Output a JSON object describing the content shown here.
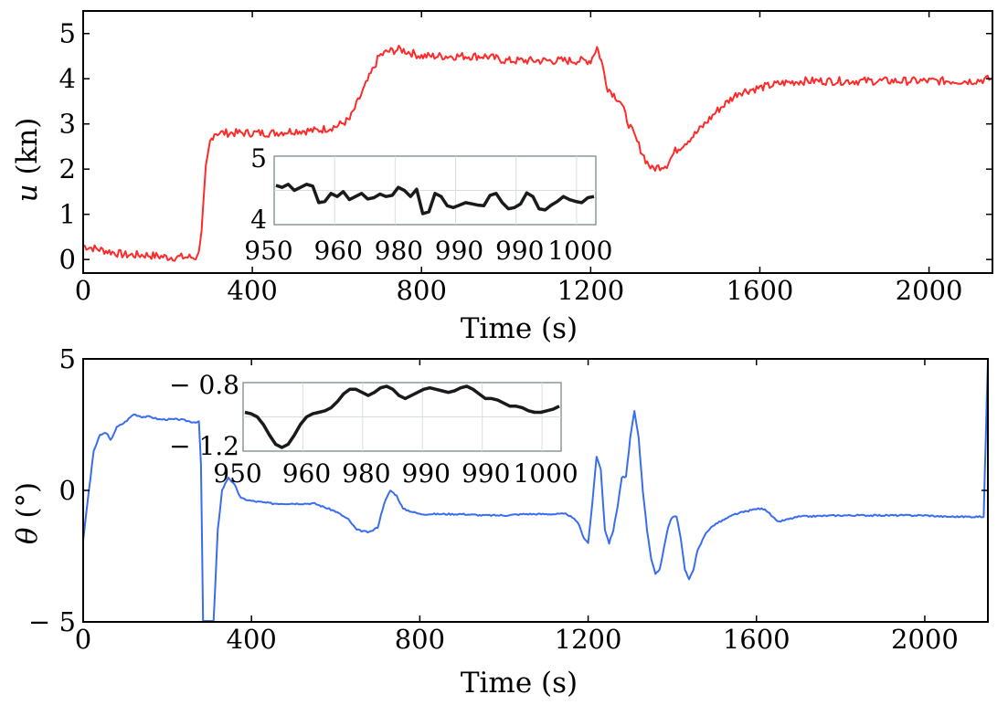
{
  "chart_data": [
    {
      "type": "line",
      "title": "",
      "xlabel": "Time (s)",
      "ylabel_symbol": "u",
      "ylabel_unit": " (kn)",
      "xlim": [
        0,
        2150
      ],
      "ylim": [
        -0.3,
        5.5
      ],
      "xticks": [
        0,
        400,
        800,
        1200,
        1600,
        2000
      ],
      "xtick_labels": [
        "0",
        "400",
        "800",
        "1200",
        "1600",
        "2000"
      ],
      "yticks": [
        0,
        1,
        2,
        3,
        4,
        5
      ],
      "ytick_labels": [
        "0",
        "1",
        "2",
        "3",
        "4",
        "5"
      ],
      "grid": false,
      "color": "#ff2a2a",
      "series": [
        {
          "x": [
            0,
            50,
            100,
            150,
            200,
            240,
            270,
            280,
            290,
            300,
            310,
            350,
            400,
            450,
            500,
            550,
            600,
            630,
            650,
            680,
            700,
            720,
            750,
            800,
            850,
            900,
            950,
            1000,
            1050,
            1100,
            1150,
            1200,
            1215,
            1225,
            1240,
            1255,
            1270,
            1290,
            1310,
            1330,
            1345,
            1360,
            1380,
            1400,
            1450,
            1500,
            1550,
            1600,
            1650,
            1700,
            1800,
            1900,
            2000,
            2100,
            2150
          ],
          "y": [
            0.3,
            0.2,
            0.1,
            0.1,
            0.05,
            0.05,
            0.05,
            0.6,
            2.0,
            2.6,
            2.8,
            2.8,
            2.8,
            2.8,
            2.85,
            2.85,
            2.95,
            3.1,
            3.5,
            4.1,
            4.5,
            4.6,
            4.65,
            4.5,
            4.5,
            4.5,
            4.5,
            4.4,
            4.4,
            4.4,
            4.4,
            4.4,
            4.7,
            4.4,
            3.8,
            3.65,
            3.5,
            3.0,
            2.6,
            2.2,
            2.0,
            2.05,
            2.1,
            2.4,
            2.8,
            3.3,
            3.7,
            3.8,
            3.9,
            3.95,
            3.95,
            3.95,
            3.95,
            3.95,
            4.0
          ]
        }
      ],
      "inset": {
        "type": "line",
        "xtick_labels": [
          "950",
          "960",
          "980",
          "990",
          "990",
          "1000"
        ],
        "ytick_labels": [
          "5",
          "4"
        ],
        "ylim": [
          4,
          5
        ],
        "color": "#1a1a1a",
        "values": [
          4.58,
          4.55,
          4.6,
          4.5,
          4.55,
          4.6,
          4.57,
          4.3,
          4.32,
          4.45,
          4.4,
          4.48,
          4.35,
          4.4,
          4.45,
          4.36,
          4.38,
          4.44,
          4.4,
          4.42,
          4.55,
          4.5,
          4.4,
          4.52,
          4.12,
          4.15,
          4.45,
          4.4,
          4.25,
          4.22,
          4.26,
          4.3,
          4.28,
          4.26,
          4.25,
          4.42,
          4.45,
          4.3,
          4.2,
          4.22,
          4.28,
          4.46,
          4.4,
          4.2,
          4.18,
          4.26,
          4.32,
          4.4,
          4.35,
          4.32,
          4.3,
          4.38,
          4.4
        ]
      }
    },
    {
      "type": "line",
      "title": "",
      "xlabel": "Time (s)",
      "ylabel_symbol": "θ",
      "ylabel_unit": " (°)",
      "xlim": [
        0,
        2150
      ],
      "ylim": [
        -5,
        5
      ],
      "xticks": [
        0,
        400,
        800,
        1200,
        1600,
        2000
      ],
      "xtick_labels": [
        "0",
        "400",
        "800",
        "1200",
        "1600",
        "2000"
      ],
      "yticks": [
        -5,
        0,
        5
      ],
      "ytick_labels": [
        "− 5",
        "0",
        "5"
      ],
      "grid": false,
      "color": "#3a6cf0",
      "series": [
        {
          "x": [
            0,
            10,
            25,
            40,
            55,
            65,
            80,
            100,
            120,
            140,
            160,
            180,
            200,
            230,
            260,
            275,
            280,
            285,
            290,
            295,
            300,
            305,
            310,
            320,
            330,
            345,
            360,
            375,
            400,
            450,
            500,
            550,
            600,
            630,
            650,
            680,
            700,
            715,
            730,
            745,
            760,
            780,
            800,
            850,
            900,
            950,
            1000,
            1050,
            1100,
            1150,
            1175,
            1190,
            1200,
            1210,
            1220,
            1230,
            1240,
            1250,
            1260,
            1270,
            1280,
            1290,
            1300,
            1310,
            1320,
            1330,
            1340,
            1350,
            1360,
            1370,
            1380,
            1390,
            1400,
            1410,
            1420,
            1430,
            1440,
            1450,
            1460,
            1480,
            1500,
            1550,
            1600,
            1620,
            1650,
            1700,
            1800,
            1900,
            1950,
            2000,
            2050,
            2100,
            2130,
            2140,
            2145,
            2150
          ],
          "y": [
            -1.9,
            -0.5,
            1.5,
            2.1,
            2.2,
            1.9,
            2.4,
            2.6,
            2.9,
            2.8,
            2.8,
            2.7,
            2.7,
            2.7,
            2.6,
            2.6,
            1.0,
            -5.0,
            -5.5,
            -5.5,
            -5.5,
            -5.5,
            -5.0,
            -1.5,
            0.0,
            0.5,
            0.2,
            -0.3,
            -0.4,
            -0.5,
            -0.5,
            -0.5,
            -0.8,
            -1.1,
            -1.5,
            -1.6,
            -1.4,
            -0.5,
            0.0,
            -0.2,
            -0.7,
            -0.8,
            -0.9,
            -0.9,
            -0.9,
            -0.95,
            -0.95,
            -0.9,
            -0.9,
            -0.9,
            -1.2,
            -1.8,
            -2.0,
            -0.5,
            1.3,
            0.8,
            -1.5,
            -2.0,
            -1.5,
            -0.6,
            0.5,
            0.5,
            2.0,
            3.0,
            2.0,
            0.0,
            -1.5,
            -2.6,
            -3.2,
            -3.0,
            -2.2,
            -1.4,
            -1.0,
            -1.0,
            -1.8,
            -3.0,
            -3.4,
            -3.0,
            -2.3,
            -1.6,
            -1.3,
            -0.9,
            -0.7,
            -0.7,
            -1.2,
            -1.0,
            -0.95,
            -0.95,
            -0.95,
            -0.95,
            -1.0,
            -1.0,
            -1.0,
            -1.0,
            2.0,
            5.0
          ]
        }
      ],
      "inset": {
        "type": "line",
        "xtick_labels": [
          "950",
          "960",
          "980",
          "990",
          "990",
          "1000"
        ],
        "ytick_labels": [
          "− 0.8",
          "− 1.2"
        ],
        "ylim": [
          -1.2,
          -0.8
        ],
        "color": "#1a1a1a",
        "values": [
          -0.97,
          -0.98,
          -1.0,
          -1.05,
          -1.12,
          -1.18,
          -1.2,
          -1.18,
          -1.12,
          -1.05,
          -1.0,
          -0.98,
          -0.97,
          -0.96,
          -0.94,
          -0.9,
          -0.85,
          -0.82,
          -0.82,
          -0.84,
          -0.86,
          -0.84,
          -0.81,
          -0.8,
          -0.82,
          -0.86,
          -0.88,
          -0.86,
          -0.84,
          -0.82,
          -0.81,
          -0.82,
          -0.83,
          -0.84,
          -0.83,
          -0.81,
          -0.8,
          -0.82,
          -0.85,
          -0.88,
          -0.88,
          -0.89,
          -0.91,
          -0.93,
          -0.93,
          -0.94,
          -0.96,
          -0.97,
          -0.97,
          -0.96,
          -0.95,
          -0.93
        ]
      }
    }
  ]
}
